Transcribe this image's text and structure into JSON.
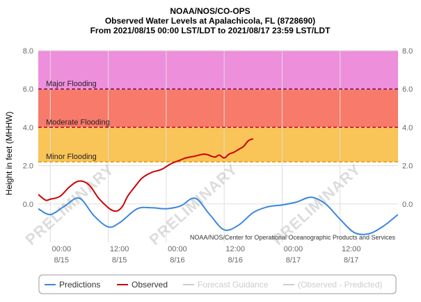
{
  "chart_data": {
    "type": "line",
    "title": [
      "NOAA/NOS/CO-OPS",
      "Observed Water Levels at Apalachicola, FL (8728690)",
      "From 2021/08/15 00:00 LST/LDT to 2021/08/17 23:59 LST/LDT"
    ],
    "ylabel": "Height in feet (MHHW)",
    "ylim": [
      -2.0,
      8.0
    ],
    "xlim_hours": [
      -2.5,
      72
    ],
    "y_ticks": [
      8.0,
      6.0,
      4.0,
      2.0,
      0.0
    ],
    "y_tick_labels": [
      "8.0",
      "6.0",
      "4.0",
      "2.0",
      "0.0"
    ],
    "x_ticks_hours": [
      0,
      12,
      24,
      36,
      48,
      60
    ],
    "x_tick_labels_time": [
      "00:00",
      "12:00",
      "00:00",
      "12:00",
      "00:00",
      "12:00"
    ],
    "x_tick_labels_date": [
      "8/15",
      "8/15",
      "8/16",
      "8/16",
      "8/17",
      "8/17"
    ],
    "thresholds": [
      {
        "name": "Major Flooding",
        "value": 6.0,
        "color": "#800060",
        "fill": "#ee8fdc"
      },
      {
        "name": "Moderate Flooding",
        "value": 4.0,
        "color": "#cc0000",
        "fill": "#f87a6a"
      },
      {
        "name": "Minor Flooding",
        "value": 2.2,
        "color": "#e09a00",
        "fill": "#f9c458"
      }
    ],
    "series": [
      {
        "name": "Predictions",
        "color": "#3a86e0",
        "x": [
          -2.5,
          0,
          3,
          6,
          9,
          12,
          14.5,
          18,
          21,
          24,
          27,
          30,
          33,
          36,
          39,
          42,
          45,
          48,
          51,
          54,
          57,
          60,
          63,
          66,
          69,
          72
        ],
        "values": [
          -0.25,
          -0.55,
          -0.1,
          0.3,
          -0.6,
          -1.2,
          -0.95,
          -0.25,
          -0.2,
          -0.25,
          -0.1,
          0.3,
          -0.55,
          -1.35,
          -1.1,
          -0.45,
          -0.15,
          -0.05,
          0.1,
          0.35,
          0.0,
          -0.8,
          -1.5,
          -1.55,
          -1.15,
          -0.55
        ]
      },
      {
        "name": "Observed",
        "color": "#cc0000",
        "x": [
          -2.5,
          -1,
          0,
          2,
          4,
          6,
          8,
          10,
          12,
          13,
          14,
          15,
          16,
          17.5,
          19,
          21,
          23,
          25,
          27,
          28,
          30,
          32,
          34,
          35,
          36,
          37,
          38,
          39,
          40,
          41,
          42
        ],
        "values": [
          0.5,
          0.2,
          0.25,
          0.4,
          0.9,
          1.2,
          1.0,
          0.3,
          -0.2,
          -0.35,
          -0.35,
          -0.1,
          0.4,
          0.9,
          1.35,
          1.65,
          1.8,
          2.1,
          2.3,
          2.4,
          2.5,
          2.6,
          2.45,
          2.55,
          2.4,
          2.6,
          2.7,
          2.85,
          3.0,
          3.3,
          3.4
        ]
      }
    ],
    "annotations": [
      "PRELIMINARY",
      "PRELIMINARY",
      "PRELIMINARY"
    ],
    "credit": "NOAA/NOS/Center for Operational Oceanographic Products and Services",
    "legend": {
      "placement": "bottom",
      "entries": [
        {
          "label": "Predictions",
          "color": "#3a86e0",
          "active": true
        },
        {
          "label": "Observed",
          "color": "#cc0000",
          "active": true
        },
        {
          "label": "Forecast Guidance",
          "color": "#cccccc",
          "active": false
        },
        {
          "label": "(Observed - Predicted)",
          "color": "#cccccc",
          "active": false
        }
      ]
    }
  }
}
